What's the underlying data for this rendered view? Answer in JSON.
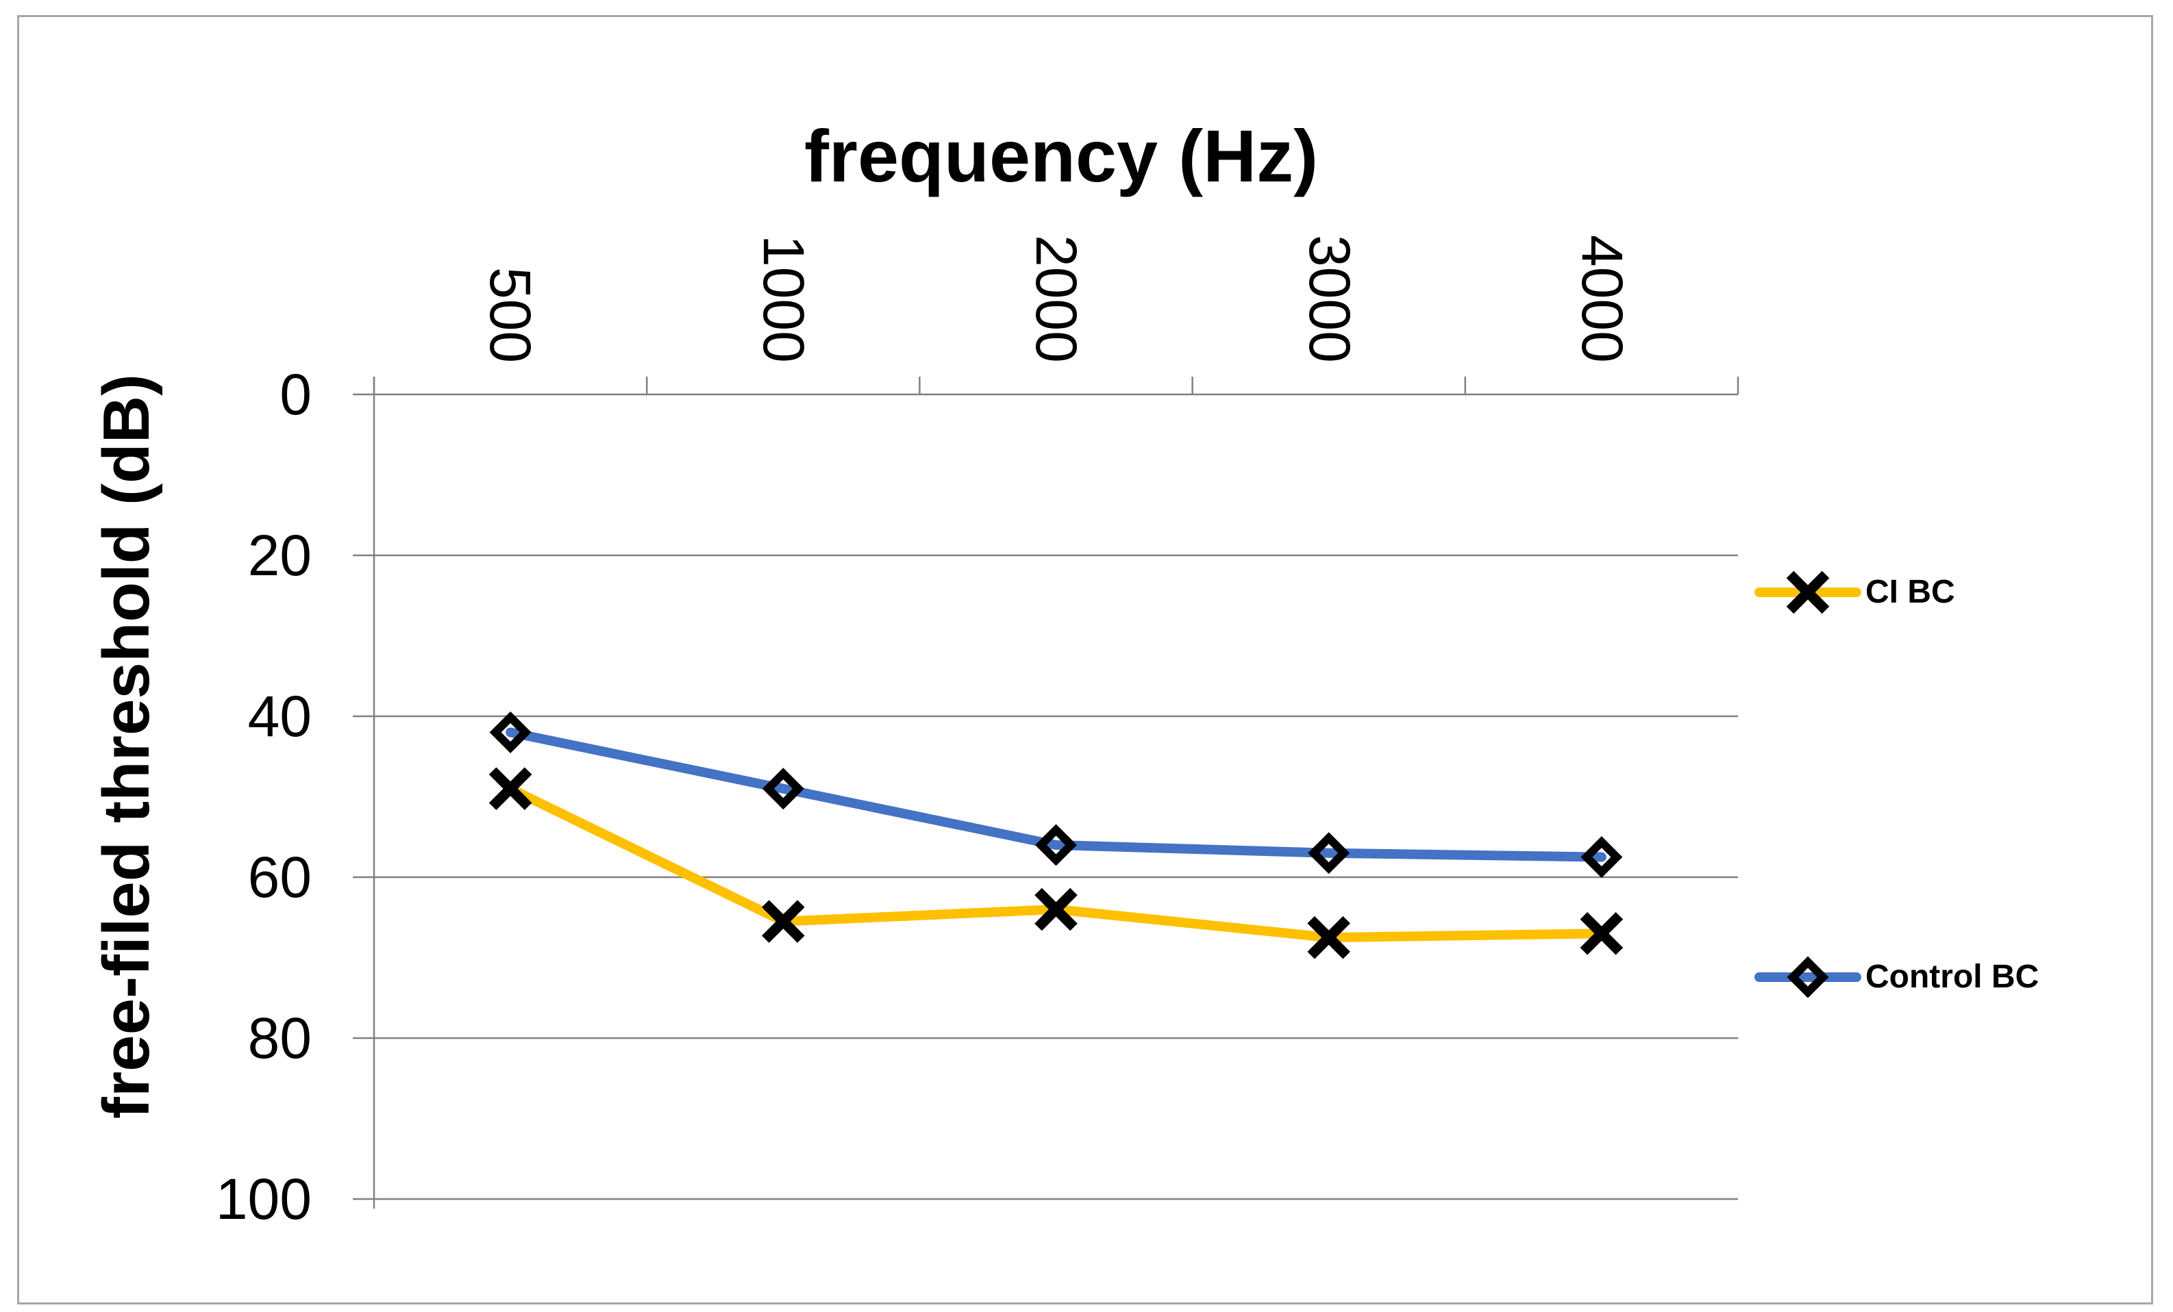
{
  "chart_data": {
    "type": "line",
    "title": "frequency (Hz)",
    "xlabel": "frequency (Hz)",
    "ylabel": "free-filed threshold (dB)",
    "categories": [
      "500",
      "1000",
      "2000",
      "3000",
      "4000"
    ],
    "y_ticks": [
      "0",
      "20",
      "40",
      "60",
      "80",
      "100"
    ],
    "ylim": [
      0,
      100
    ],
    "y_axis_reversed": true,
    "grid": true,
    "legend_position": "right",
    "series": [
      {
        "name": "CI BC",
        "color": "#FFC000",
        "marker": "x",
        "values": [
          49,
          65.5,
          64,
          67.5,
          67
        ]
      },
      {
        "name": "Control BC",
        "color": "#4472C4",
        "marker": "diamond",
        "values": [
          42,
          49,
          56,
          57,
          57.5
        ]
      }
    ]
  },
  "colors": {
    "gridline": "#808080",
    "axis": "#808080",
    "marker": "#000000",
    "chart_border": "#A6A6A6",
    "text": "#000000",
    "background": "#FFFFFF"
  }
}
